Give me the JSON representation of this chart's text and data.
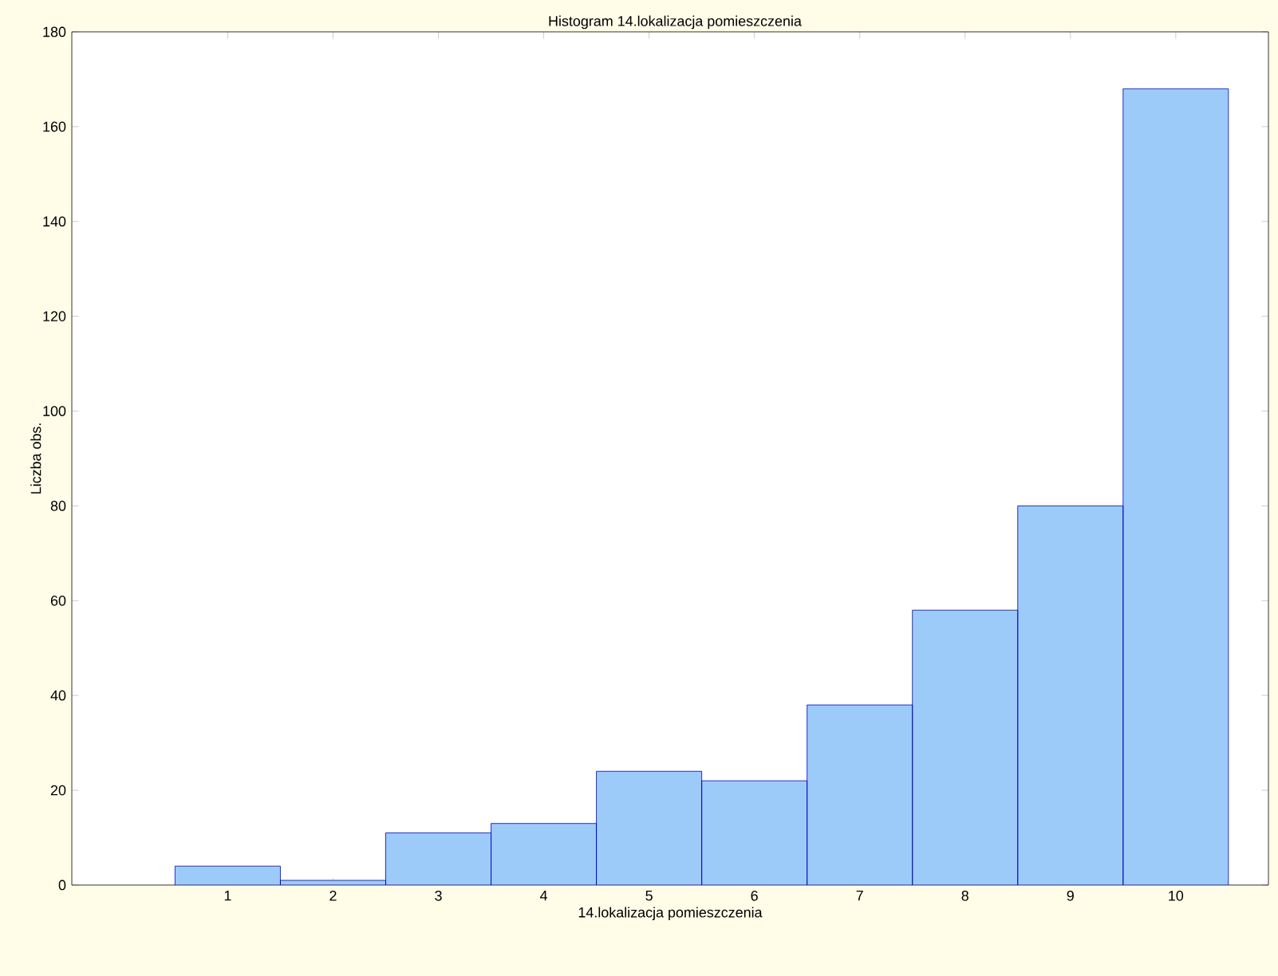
{
  "chart_data": {
    "type": "bar",
    "title": "Histogram     14.lokalizacja pomieszczenia",
    "xlabel": "14.lokalizacja pomieszczenia",
    "ylabel": "Liczba obs.",
    "categories": [
      "1",
      "2",
      "3",
      "4",
      "5",
      "6",
      "7",
      "8",
      "9",
      "10"
    ],
    "values": [
      4,
      1,
      11,
      13,
      24,
      22,
      38,
      58,
      80,
      168
    ],
    "color": "#9ccbfa",
    "ylim": [
      0,
      180
    ],
    "yticks": [
      0,
      20,
      40,
      60,
      80,
      100,
      120,
      140,
      160,
      180
    ],
    "grid": false
  }
}
